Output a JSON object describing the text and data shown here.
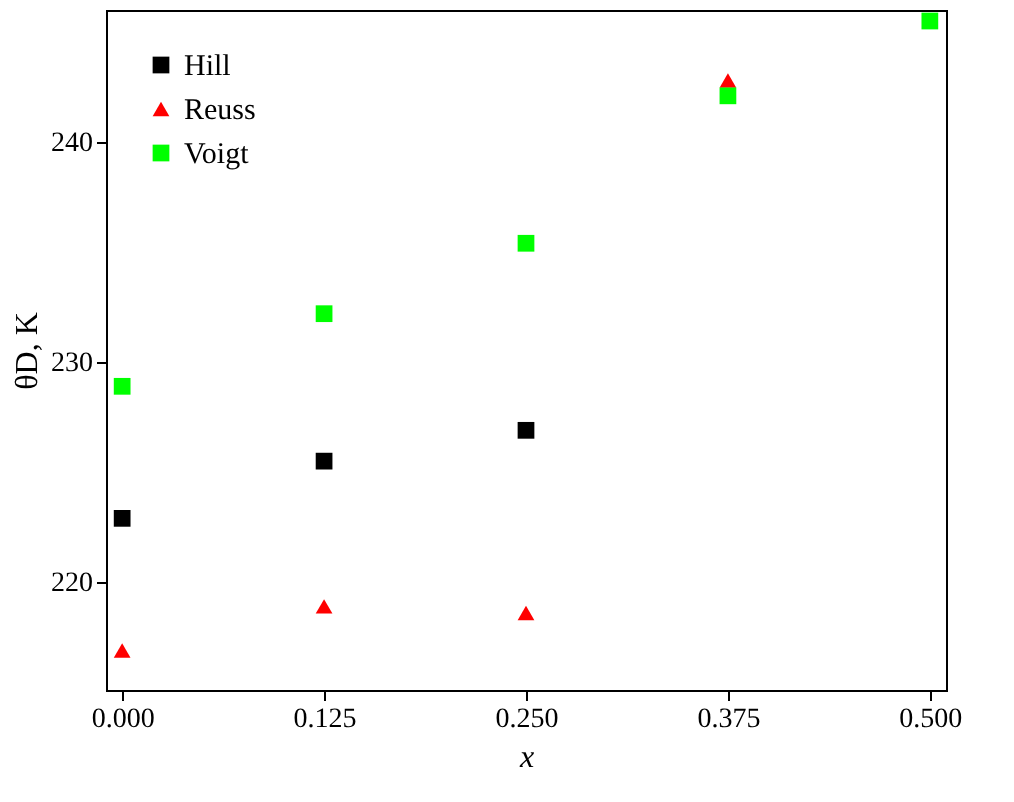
{
  "chart_data": {
    "type": "scatter",
    "xlabel": "x",
    "ylabel": "θD, K",
    "x": [
      0,
      0.125,
      0.25,
      0.375,
      0.5
    ],
    "series": [
      {
        "name": "Hill",
        "color": "#000000",
        "marker": "square",
        "values": [
          222.9,
          225.5,
          226.9,
          null,
          null
        ]
      },
      {
        "name": "Reuss",
        "color": "#ff0000",
        "marker": "triangle",
        "values": [
          216.9,
          218.9,
          218.6,
          242.8,
          null
        ]
      },
      {
        "name": "Voigt",
        "color": "#00ff00",
        "marker": "square",
        "values": [
          228.9,
          232.2,
          235.4,
          242.1,
          245.5
        ]
      }
    ],
    "xlim": [
      -0.01,
      0.51
    ],
    "xticks": [
      {
        "value": 0,
        "label": "0.000"
      },
      {
        "value": 0.125,
        "label": "0.125"
      },
      {
        "value": 0.25,
        "label": "0.250"
      },
      {
        "value": 0.375,
        "label": "0.375"
      },
      {
        "value": 0.5,
        "label": "0.500"
      }
    ],
    "ylim": [
      215.1,
      246
    ],
    "yticks": [
      220,
      230,
      240
    ],
    "grid": false,
    "legend": "top left"
  }
}
